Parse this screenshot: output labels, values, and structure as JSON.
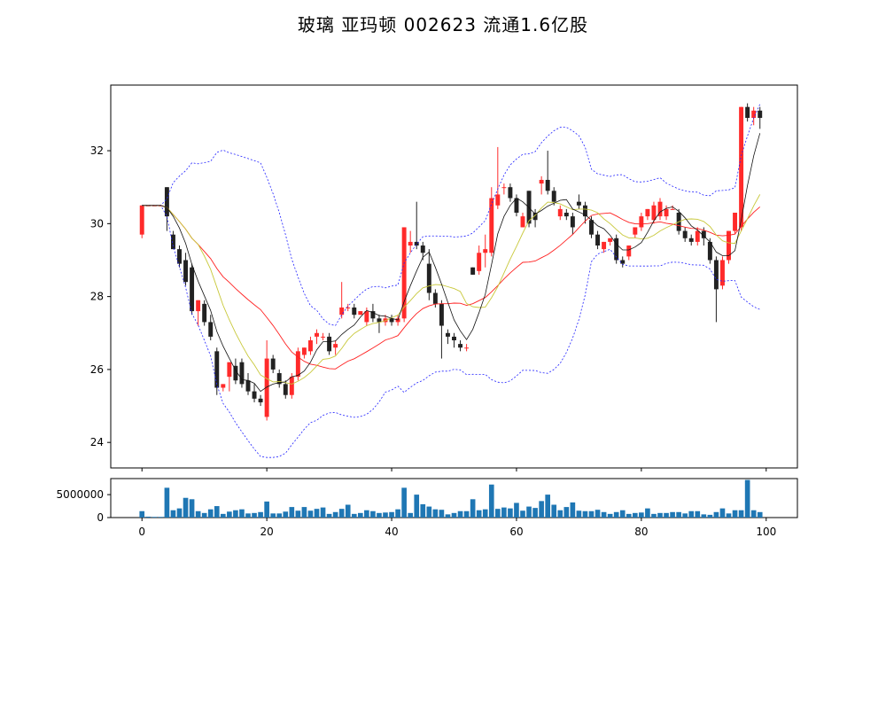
{
  "chart_data": {
    "type": "candlestick",
    "title": "玻璃 亚玛顿 002623 流通1.6亿股",
    "xlim": [
      -5,
      105
    ],
    "price_ylim": [
      23.3,
      33.8
    ],
    "price_yticks": [
      24,
      26,
      28,
      30,
      32
    ],
    "volume_ylim": [
      0,
      8500000
    ],
    "volume_yticks": [
      0,
      5000000
    ],
    "xticks": [
      0,
      20,
      40,
      60,
      80,
      100
    ],
    "colors": {
      "up": "#ff2a2a",
      "down": "#222222",
      "ma5": "#111111",
      "ma10": "#c8c83a",
      "ma20": "#ff2020",
      "boll": "#2020ff",
      "volume": "#1f77b4"
    },
    "candles": [
      [
        29.7,
        30.5,
        29.6,
        30.5
      ],
      [
        30.5,
        30.5,
        30.5,
        30.5
      ],
      [
        30.5,
        30.5,
        30.5,
        30.5
      ],
      [
        30.5,
        30.5,
        30.5,
        30.5
      ],
      [
        31.0,
        31.0,
        29.8,
        30.2
      ],
      [
        29.7,
        29.8,
        29.3,
        29.3
      ],
      [
        29.3,
        29.4,
        28.8,
        28.9
      ],
      [
        29.0,
        29.2,
        28.3,
        28.4
      ],
      [
        28.8,
        28.9,
        27.5,
        27.6
      ],
      [
        27.6,
        27.9,
        27.2,
        27.9
      ],
      [
        27.8,
        27.9,
        27.2,
        27.3
      ],
      [
        27.3,
        27.5,
        26.8,
        26.9
      ],
      [
        26.5,
        26.6,
        25.3,
        25.5
      ],
      [
        25.5,
        25.6,
        25.4,
        25.6
      ],
      [
        25.8,
        26.2,
        25.4,
        26.2
      ],
      [
        26.1,
        26.3,
        25.6,
        25.7
      ],
      [
        26.2,
        26.3,
        25.5,
        25.6
      ],
      [
        25.7,
        25.9,
        25.3,
        25.4
      ],
      [
        25.4,
        25.6,
        25.1,
        25.2
      ],
      [
        25.2,
        25.3,
        25.0,
        25.1
      ],
      [
        24.7,
        26.8,
        24.6,
        26.3
      ],
      [
        26.3,
        26.4,
        25.9,
        26.0
      ],
      [
        25.9,
        26.0,
        25.5,
        25.6
      ],
      [
        25.6,
        25.7,
        25.2,
        25.3
      ],
      [
        25.3,
        25.9,
        25.2,
        25.8
      ],
      [
        25.8,
        26.6,
        25.7,
        26.5
      ],
      [
        26.4,
        26.6,
        26.3,
        26.6
      ],
      [
        26.5,
        26.9,
        26.4,
        26.8
      ],
      [
        26.9,
        27.1,
        26.7,
        27.0
      ],
      [
        26.9,
        27.0,
        26.8,
        26.9
      ],
      [
        26.9,
        27.0,
        26.4,
        26.5
      ],
      [
        26.6,
        26.8,
        26.4,
        26.7
      ],
      [
        27.5,
        28.4,
        27.4,
        27.7
      ],
      [
        27.7,
        27.8,
        27.6,
        27.7
      ],
      [
        27.7,
        27.8,
        27.4,
        27.5
      ],
      [
        27.5,
        27.6,
        27.5,
        27.6
      ],
      [
        27.3,
        27.7,
        27.2,
        27.6
      ],
      [
        27.6,
        27.8,
        27.3,
        27.4
      ],
      [
        27.4,
        27.5,
        27.0,
        27.3
      ],
      [
        27.3,
        27.5,
        27.2,
        27.4
      ],
      [
        27.4,
        27.5,
        27.2,
        27.3
      ],
      [
        27.3,
        27.5,
        27.2,
        27.4
      ],
      [
        27.4,
        29.9,
        27.3,
        29.9
      ],
      [
        29.4,
        29.8,
        29.2,
        29.5
      ],
      [
        29.5,
        30.6,
        29.3,
        29.4
      ],
      [
        29.4,
        29.5,
        29.0,
        29.2
      ],
      [
        28.9,
        29.3,
        27.9,
        28.1
      ],
      [
        28.1,
        28.2,
        27.7,
        27.8
      ],
      [
        27.8,
        27.9,
        26.3,
        27.2
      ],
      [
        27.0,
        27.1,
        26.7,
        26.9
      ],
      [
        26.9,
        27.0,
        26.6,
        26.8
      ],
      [
        26.7,
        26.8,
        26.5,
        26.6
      ],
      [
        26.6,
        26.7,
        26.5,
        26.6
      ],
      [
        28.8,
        28.8,
        28.6,
        28.6
      ],
      [
        28.7,
        29.4,
        28.6,
        29.2
      ],
      [
        29.2,
        29.7,
        28.8,
        29.3
      ],
      [
        29.2,
        31.0,
        29.1,
        30.7
      ],
      [
        30.5,
        32.1,
        30.4,
        30.8
      ],
      [
        31.0,
        31.1,
        30.8,
        31.0
      ],
      [
        31.0,
        31.1,
        30.6,
        30.7
      ],
      [
        30.7,
        30.8,
        30.2,
        30.3
      ],
      [
        29.9,
        30.3,
        29.9,
        30.2
      ],
      [
        30.9,
        30.9,
        29.9,
        30.0
      ],
      [
        30.3,
        30.4,
        29.9,
        30.1
      ],
      [
        31.1,
        31.3,
        30.8,
        31.2
      ],
      [
        31.2,
        32.0,
        30.8,
        30.9
      ],
      [
        30.9,
        31.0,
        30.5,
        30.6
      ],
      [
        30.2,
        30.5,
        30.1,
        30.4
      ],
      [
        30.3,
        30.4,
        30.1,
        30.2
      ],
      [
        30.2,
        30.3,
        29.7,
        29.9
      ],
      [
        30.6,
        30.8,
        30.4,
        30.5
      ],
      [
        30.5,
        30.6,
        30.0,
        30.2
      ],
      [
        30.1,
        30.2,
        29.6,
        29.7
      ],
      [
        29.7,
        29.8,
        29.3,
        29.4
      ],
      [
        29.3,
        29.5,
        29.2,
        29.5
      ],
      [
        29.5,
        29.6,
        29.4,
        29.6
      ],
      [
        29.6,
        29.7,
        28.9,
        29.0
      ],
      [
        29.0,
        29.1,
        28.8,
        28.9
      ],
      [
        29.1,
        29.4,
        29.0,
        29.4
      ],
      [
        29.7,
        29.9,
        29.6,
        29.9
      ],
      [
        29.9,
        30.3,
        29.8,
        30.2
      ],
      [
        30.2,
        30.4,
        30.1,
        30.4
      ],
      [
        30.1,
        30.6,
        30.0,
        30.5
      ],
      [
        30.2,
        30.7,
        30.1,
        30.6
      ],
      [
        30.2,
        30.5,
        30.1,
        30.4
      ],
      [
        30.4,
        30.5,
        30.4,
        30.4
      ],
      [
        30.3,
        30.4,
        29.7,
        29.8
      ],
      [
        29.8,
        29.9,
        29.5,
        29.6
      ],
      [
        29.6,
        29.7,
        29.4,
        29.5
      ],
      [
        29.5,
        29.9,
        29.4,
        29.8
      ],
      [
        29.8,
        29.9,
        29.4,
        29.6
      ],
      [
        29.5,
        29.6,
        28.9,
        29.0
      ],
      [
        29.0,
        29.1,
        27.3,
        28.2
      ],
      [
        28.3,
        29.1,
        28.2,
        29.0
      ],
      [
        29.0,
        29.8,
        28.9,
        29.8
      ],
      [
        29.8,
        30.3,
        29.7,
        30.3
      ],
      [
        29.9,
        33.2,
        29.8,
        33.2
      ],
      [
        33.2,
        33.3,
        32.8,
        32.9
      ],
      [
        32.9,
        33.2,
        32.7,
        33.1
      ],
      [
        33.1,
        33.2,
        32.6,
        32.9
      ]
    ],
    "volume": [
      1400000,
      200000,
      150000,
      150000,
      6500000,
      1600000,
      2000000,
      4300000,
      4000000,
      1400000,
      1000000,
      1800000,
      2500000,
      800000,
      1300000,
      1600000,
      1800000,
      900000,
      1000000,
      1200000,
      3500000,
      900000,
      900000,
      1300000,
      2300000,
      1500000,
      2300000,
      1500000,
      1900000,
      2200000,
      800000,
      1200000,
      1900000,
      2800000,
      800000,
      1000000,
      1600000,
      1400000,
      1000000,
      1100000,
      1200000,
      1800000,
      6500000,
      1000000,
      5000000,
      2900000,
      2400000,
      1800000,
      1700000,
      700000,
      1000000,
      1400000,
      1400000,
      4000000,
      1600000,
      1800000,
      7200000,
      1900000,
      2200000,
      2000000,
      3200000,
      1500000,
      2400000,
      2100000,
      3600000,
      5000000,
      2800000,
      1600000,
      2300000,
      3300000,
      1500000,
      1400000,
      1400000,
      1700000,
      1200000,
      800000,
      1200000,
      1600000,
      800000,
      1000000,
      1100000,
      2000000,
      800000,
      1000000,
      1000000,
      1200000,
      1200000,
      900000,
      1400000,
      1400000,
      700000,
      600000,
      1200000,
      2000000,
      900000,
      1600000,
      1600000,
      8200000,
      1600000,
      1200000
    ]
  }
}
